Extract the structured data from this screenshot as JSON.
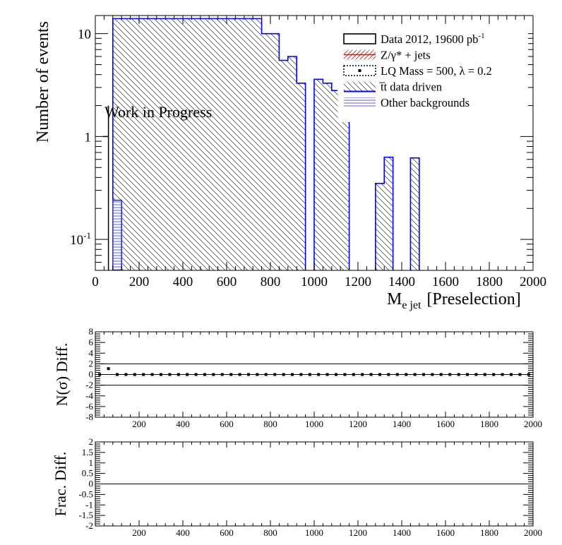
{
  "chart_data": [
    {
      "type": "bar",
      "panel": "main",
      "xlabel_main": "M",
      "xlabel_sub": "e jet",
      "xlabel_suffix": "[Preselection]",
      "ylabel": "Number of events",
      "xlim": [
        0,
        2000
      ],
      "ylim": [
        0.05,
        15
      ],
      "yscale": "log",
      "x_ticks": [
        0,
        200,
        400,
        600,
        800,
        1000,
        1200,
        1400,
        1600,
        1800,
        2000
      ],
      "x_tick_labels": [
        "0",
        "200",
        "400",
        "600",
        "800",
        "1000",
        "1200",
        "1400",
        "1600",
        "1800",
        "2000"
      ],
      "y_tick_labels": [
        {
          "value": 10,
          "text": "10"
        },
        {
          "value": 1,
          "text": "1"
        },
        {
          "value": 0.1,
          "base": "10",
          "exp": "-1"
        }
      ],
      "annotation": "Work in Progress",
      "legend_position": "top-right",
      "legend": [
        {
          "label": "Data 2012, 19600 pb",
          "sup": "-1",
          "style": "data",
          "color": "#000000"
        },
        {
          "label": "Z/γ* + jets",
          "style": "hatch-red",
          "color": "#ff0000"
        },
        {
          "label": "LQ Mass = 500, λ = 0.2",
          "style": "dotted",
          "color": "#000000"
        },
        {
          "label": "t t̄ data driven",
          "display": "t̅t data driven",
          "style": "hatch-black-blue",
          "color": "#0000ff"
        },
        {
          "label": "Other backgrounds",
          "style": "hatch-blue",
          "color": "#3333cc"
        }
      ],
      "series": [
        {
          "name": "t t̄ data driven",
          "style": "hatched-histogram",
          "color": "#0000ff",
          "bins": [
            {
              "lo": 80,
              "hi": 760,
              "value": 14
            },
            {
              "lo": 760,
              "hi": 840,
              "value": 10
            },
            {
              "lo": 840,
              "hi": 880,
              "value": 5.5
            },
            {
              "lo": 880,
              "hi": 920,
              "value": 6.0
            },
            {
              "lo": 920,
              "hi": 960,
              "value": 3.3
            },
            {
              "lo": 1000,
              "hi": 1040,
              "value": 3.6
            },
            {
              "lo": 1040,
              "hi": 1080,
              "value": 3.3
            },
            {
              "lo": 1080,
              "hi": 1120,
              "value": 2.8
            },
            {
              "lo": 1120,
              "hi": 1160,
              "value": 2.8
            },
            {
              "lo": 1280,
              "hi": 1320,
              "value": 0.35
            },
            {
              "lo": 1320,
              "hi": 1360,
              "value": 0.63
            },
            {
              "lo": 1440,
              "hi": 1480,
              "value": 0.62
            }
          ]
        },
        {
          "name": "Other backgrounds",
          "style": "hatched-histogram",
          "color": "#3333cc",
          "bins": [
            {
              "lo": 80,
              "hi": 120,
              "value": 0.24
            }
          ]
        },
        {
          "name": "Data 2012, 19600 pb-1",
          "style": "data-points",
          "color": "#000000",
          "points": [
            {
              "x": 60,
              "y": 1,
              "err_lo": 0.05,
              "err_hi": 2.0
            }
          ]
        }
      ]
    },
    {
      "type": "scatter",
      "panel": "nsigma",
      "ylabel": "N(σ) Diff.",
      "xlim": [
        0,
        2000
      ],
      "ylim": [
        -8,
        8
      ],
      "y_ticks": [
        -8,
        -6,
        -4,
        -2,
        0,
        2,
        4,
        6,
        8
      ],
      "x_ticks": [
        200,
        400,
        600,
        800,
        1000,
        1200,
        1400,
        1600,
        1800,
        2000
      ],
      "reference_lines": [
        -2,
        0,
        2
      ],
      "points_x": [
        20,
        60,
        100,
        140,
        180,
        220,
        260,
        300,
        340,
        380,
        420,
        460,
        500,
        540,
        580,
        620,
        660,
        700,
        740,
        780,
        820,
        860,
        900,
        940,
        980,
        1020,
        1060,
        1100,
        1140,
        1180,
        1220,
        1260,
        1300,
        1340,
        1380,
        1420,
        1460,
        1500,
        1540,
        1580,
        1620,
        1660,
        1700,
        1740,
        1780,
        1820,
        1860,
        1900,
        1940,
        1980
      ],
      "points_y": [
        0,
        1.1,
        0,
        0,
        0,
        0,
        0,
        0,
        0,
        0,
        0,
        0,
        0,
        0,
        0,
        0,
        0,
        0,
        0,
        0,
        0,
        0,
        0,
        0,
        0,
        0,
        0,
        0,
        0,
        0,
        0,
        0,
        0,
        0,
        0,
        0,
        0,
        0,
        0,
        0,
        0,
        0,
        0,
        0,
        0,
        0,
        0,
        0,
        0,
        0
      ]
    },
    {
      "type": "line",
      "panel": "fracdiff",
      "ylabel": "Frac. Diff.",
      "xlim": [
        0,
        2000
      ],
      "ylim": [
        -2,
        2
      ],
      "y_ticks": [
        -2,
        -1.5,
        -1,
        -0.5,
        0,
        0.5,
        1,
        1.5,
        2
      ],
      "y_tick_labels": [
        "-2",
        "-1.5",
        "-1",
        "-0.5",
        "0",
        "0.5",
        "1",
        "1.5",
        "2"
      ],
      "x_ticks": [
        200,
        400,
        600,
        800,
        1000,
        1200,
        1400,
        1600,
        1800,
        2000
      ],
      "reference_lines": [
        0
      ]
    }
  ]
}
